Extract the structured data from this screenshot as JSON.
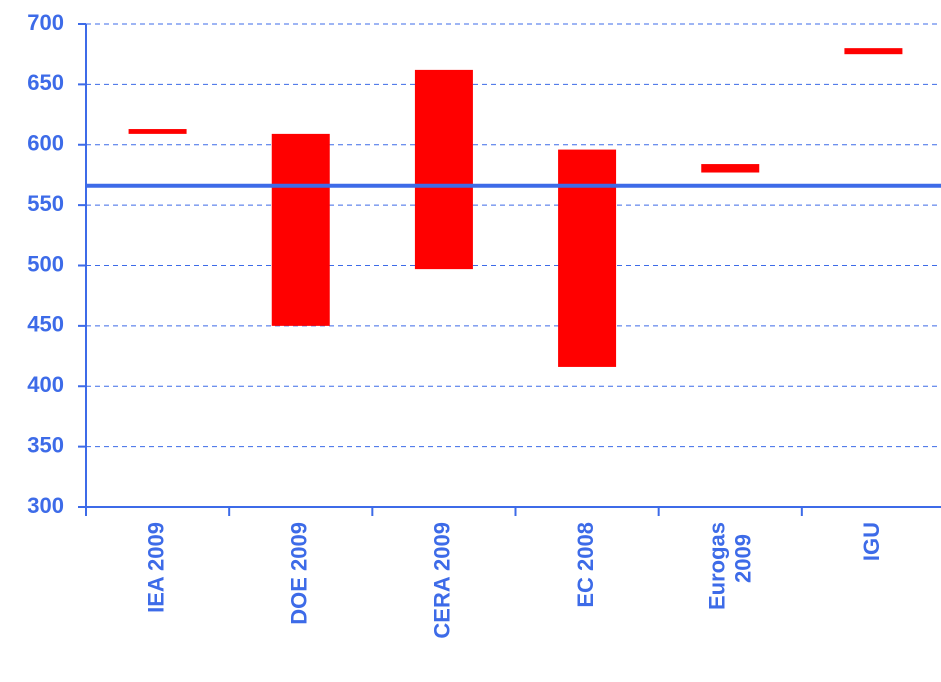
{
  "chart_data": {
    "type": "range_bar",
    "categories": [
      "IEA 2009",
      "DOE 2009",
      "CERA 2009",
      "EC 2008",
      "Eurogas 2009",
      "IGU"
    ],
    "low": [
      609,
      450,
      497,
      416,
      577,
      675
    ],
    "high": [
      613,
      609,
      662,
      596,
      584,
      680
    ],
    "color": "#ff0000",
    "reference_line": 566,
    "reference_color": "#3d6be8",
    "ylim": [
      300,
      700
    ],
    "yticks": [
      300,
      350,
      400,
      450,
      500,
      550,
      600,
      650,
      700
    ],
    "grid": true
  }
}
